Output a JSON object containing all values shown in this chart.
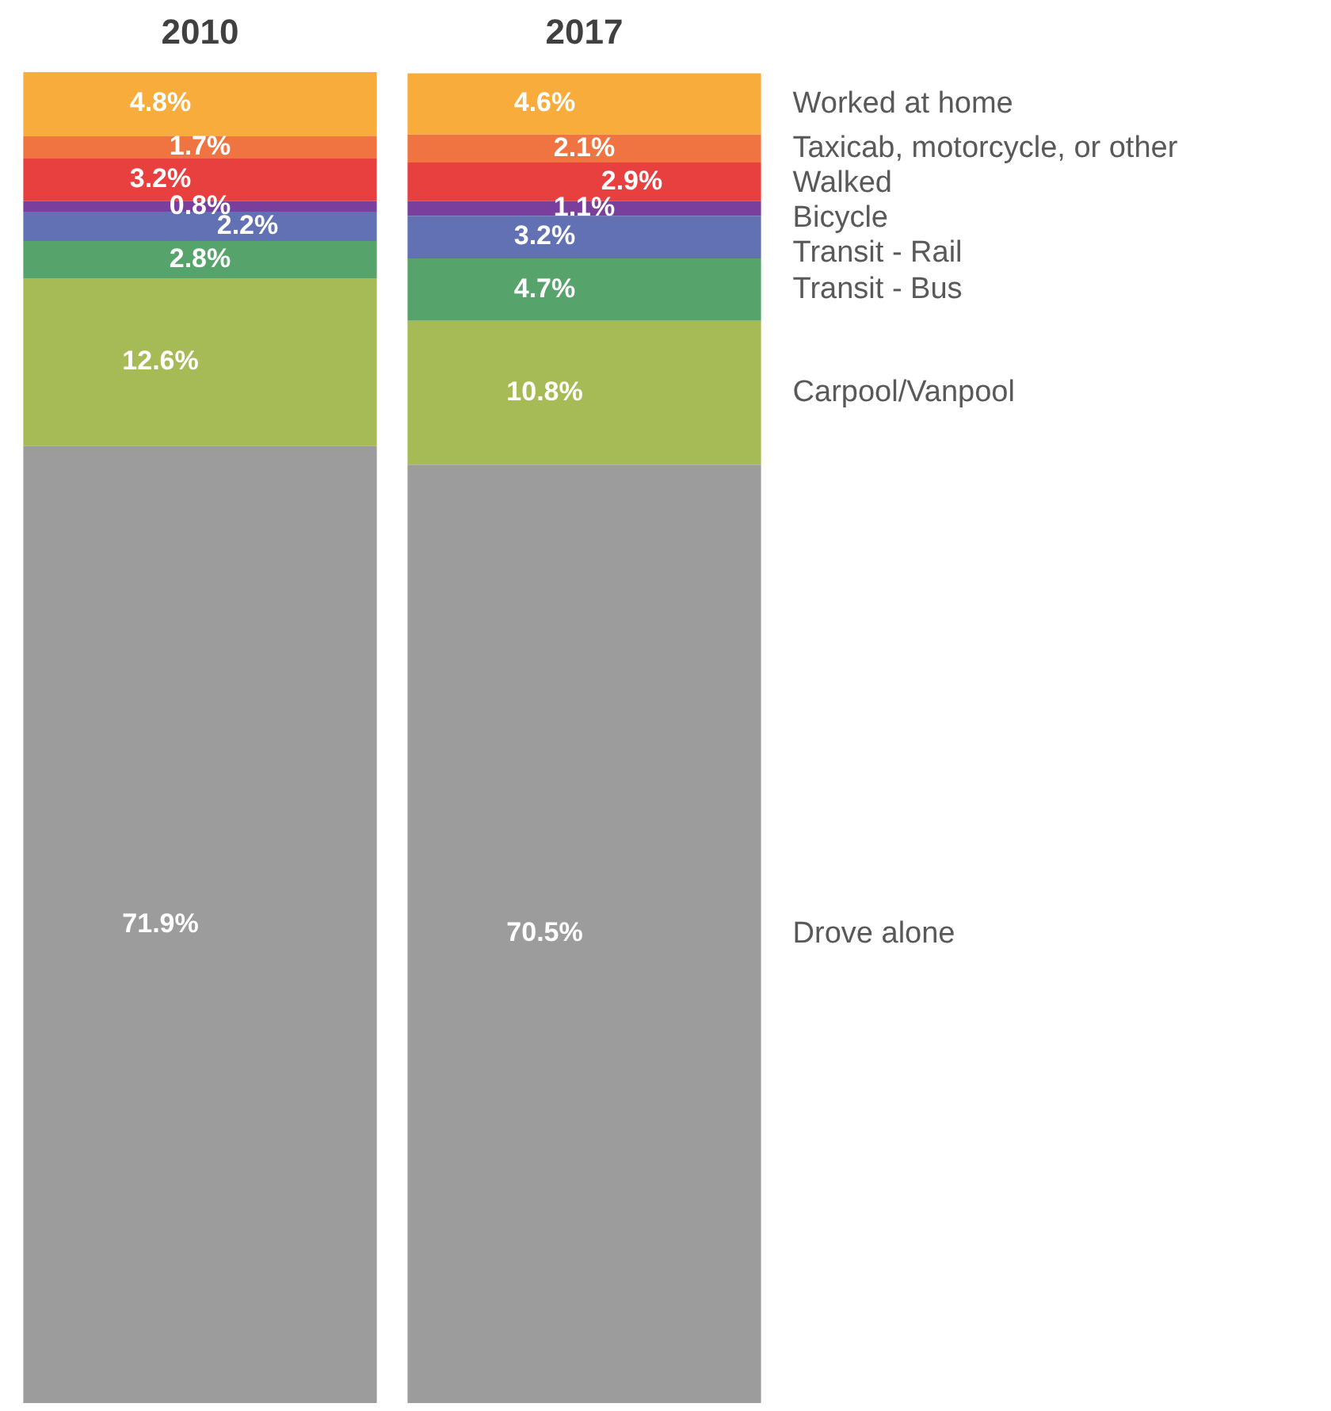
{
  "chart_data": {
    "type": "bar",
    "stacked": true,
    "tick_labels": "x",
    "categories": [
      "2010",
      "2017"
    ],
    "series": [
      {
        "name": "Drove alone",
        "color": "#9c9c9c",
        "values": [
          71.9,
          70.5
        ],
        "value_labels": [
          "71.9%",
          "70.5%"
        ]
      },
      {
        "name": "Carpool/Vanpool",
        "color": "#a6bb55",
        "values": [
          12.6,
          10.8
        ],
        "value_labels": [
          "12.6%",
          "10.8%"
        ]
      },
      {
        "name": "Transit - Bus",
        "color": "#56a46c",
        "values": [
          2.8,
          4.7
        ],
        "value_labels": [
          "2.8%",
          "4.7%"
        ]
      },
      {
        "name": "Transit - Rail",
        "color": "#6271b3",
        "values": [
          2.2,
          3.2
        ],
        "value_labels": [
          "2.2%",
          "3.2%"
        ]
      },
      {
        "name": "Bicycle",
        "color": "#7a3e9c",
        "values": [
          0.8,
          1.1
        ],
        "value_labels": [
          "0.8%",
          "1.1%"
        ]
      },
      {
        "name": "Walked",
        "color": "#e8403f",
        "values": [
          3.2,
          2.9
        ],
        "value_labels": [
          "3.2%",
          "2.9%"
        ]
      },
      {
        "name": "Taxicab, motorcycle, or other",
        "color": "#f07442",
        "values": [
          1.7,
          2.1
        ],
        "value_labels": [
          "1.7%",
          "2.1%"
        ]
      },
      {
        "name": "Worked at home",
        "color": "#f8ac3c",
        "values": [
          4.8,
          4.6
        ],
        "value_labels": [
          "4.8%",
          "4.6%"
        ]
      }
    ]
  }
}
